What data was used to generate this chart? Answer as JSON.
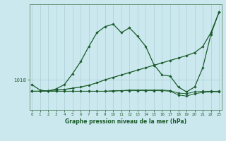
{
  "bg_color": "#cce8ef",
  "grid_color": "#aacdd8",
  "line_color": "#1a5c2a",
  "xlabel": "Graphe pression niveau de la mer (hPa)",
  "y_label_val": 1018,
  "ylabel_tick": "1018",
  "x_ticks": [
    0,
    1,
    2,
    3,
    4,
    5,
    6,
    7,
    8,
    9,
    10,
    11,
    12,
    13,
    14,
    15,
    16,
    17,
    18,
    19,
    20,
    21,
    22,
    23
  ],
  "xlim": [
    -0.3,
    23.3
  ],
  "ylim": [
    1013.0,
    1030.5
  ],
  "line1_y": [
    1017.2,
    1016.3,
    1016.1,
    1016.5,
    1017.2,
    1019.0,
    1021.0,
    1023.5,
    1025.8,
    1026.8,
    1027.2,
    1025.8,
    1026.6,
    1025.2,
    1023.5,
    1020.5,
    1018.8,
    1018.6,
    1016.8,
    1016.0,
    1016.8,
    1020.0,
    1025.5,
    1029.2
  ],
  "line2_y": [
    1016.1,
    1016.1,
    1016.2,
    1016.3,
    1016.4,
    1016.6,
    1016.8,
    1017.1,
    1017.5,
    1018.0,
    1018.4,
    1018.8,
    1019.2,
    1019.6,
    1020.0,
    1020.4,
    1020.8,
    1021.2,
    1021.6,
    1022.0,
    1022.5,
    1023.5,
    1025.8,
    1029.2
  ],
  "line3_y": [
    1016.1,
    1016.1,
    1016.1,
    1016.1,
    1016.1,
    1016.1,
    1016.1,
    1016.1,
    1016.1,
    1016.1,
    1016.2,
    1016.2,
    1016.3,
    1016.3,
    1016.3,
    1016.3,
    1016.3,
    1016.2,
    1015.8,
    1015.7,
    1016.0,
    1016.1,
    1016.1,
    1016.1
  ],
  "line4_y": [
    1016.1,
    1016.1,
    1016.1,
    1016.1,
    1016.1,
    1016.1,
    1016.1,
    1016.1,
    1016.1,
    1016.1,
    1016.1,
    1016.2,
    1016.2,
    1016.2,
    1016.2,
    1016.2,
    1016.2,
    1016.1,
    1015.5,
    1015.3,
    1015.7,
    1015.9,
    1016.0,
    1016.0
  ]
}
